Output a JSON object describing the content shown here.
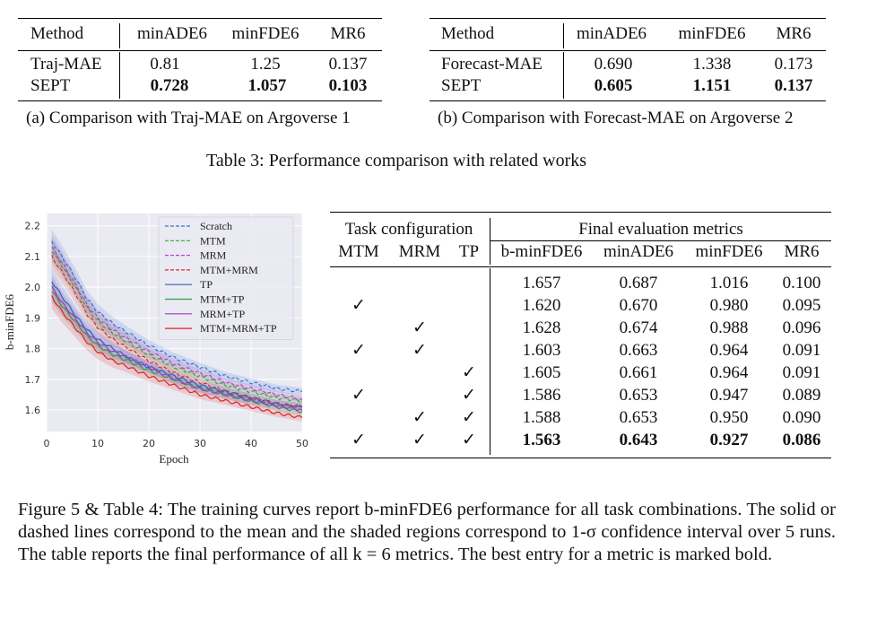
{
  "table3a": {
    "headers": [
      "Method",
      "minADE6",
      "minFDE6",
      "MR6"
    ],
    "rows": [
      {
        "method": "Traj-MAE",
        "minADE": "0.81",
        "minFDE": "1.25",
        "MR": "0.137",
        "bold": false
      },
      {
        "method": "SEPT",
        "minADE": "0.728",
        "minFDE": "1.057",
        "MR": "0.103",
        "bold": true
      }
    ],
    "caption": "(a) Comparison with Traj-MAE on Argoverse 1"
  },
  "table3b": {
    "headers": [
      "Method",
      "minADE6",
      "minFDE6",
      "MR6"
    ],
    "rows": [
      {
        "method": "Forecast-MAE",
        "minADE": "0.690",
        "minFDE": "1.338",
        "MR": "0.173",
        "bold": false
      },
      {
        "method": "SEPT",
        "minADE": "0.605",
        "minFDE": "1.151",
        "MR": "0.137",
        "bold": true
      }
    ],
    "caption": "(b) Comparison with Forecast-MAE on Argoverse 2"
  },
  "table3_caption": "Table 3: Performance comparison with related works",
  "table4": {
    "group1": "Task configuration",
    "group2": "Final evaluation metrics",
    "col_mtm": "MTM",
    "col_mrm": "MRM",
    "col_tp": "TP",
    "col_bminfde": "b-minFDE6",
    "col_minade": "minADE6",
    "col_minfde": "minFDE6",
    "col_mr": "MR6",
    "check": "✓",
    "rows": [
      {
        "mtm": false,
        "mrm": false,
        "tp": false,
        "bminfde": "1.657",
        "minade": "0.687",
        "minfde": "1.016",
        "mr": "0.100"
      },
      {
        "mtm": true,
        "mrm": false,
        "tp": false,
        "bminfde": "1.620",
        "minade": "0.670",
        "minfde": "0.980",
        "mr": "0.095"
      },
      {
        "mtm": false,
        "mrm": true,
        "tp": false,
        "bminfde": "1.628",
        "minade": "0.674",
        "minfde": "0.988",
        "mr": "0.096"
      },
      {
        "mtm": true,
        "mrm": true,
        "tp": false,
        "bminfde": "1.603",
        "minade": "0.663",
        "minfde": "0.964",
        "mr": "0.091"
      },
      {
        "mtm": false,
        "mrm": false,
        "tp": true,
        "bminfde": "1.605",
        "minade": "0.661",
        "minfde": "0.964",
        "mr": "0.091"
      },
      {
        "mtm": true,
        "mrm": false,
        "tp": true,
        "bminfde": "1.586",
        "minade": "0.653",
        "minfde": "0.947",
        "mr": "0.089"
      },
      {
        "mtm": false,
        "mrm": true,
        "tp": true,
        "bminfde": "1.588",
        "minade": "0.653",
        "minfde": "0.950",
        "mr": "0.090"
      },
      {
        "mtm": true,
        "mrm": true,
        "tp": true,
        "bminfde": "1.563",
        "minade": "0.643",
        "minfde": "0.927",
        "mr": "0.086"
      }
    ]
  },
  "figure_caption": "Figure 5 & Table 4: The training curves report b-minFDE6 performance for all task combinations. The solid or dashed lines correspond to the mean and the shaded regions correspond to 1-σ confidence interval over 5 runs. The table reports the final performance of all k = 6 metrics. The best entry for a metric is marked bold.",
  "chart_data": {
    "type": "line",
    "title": "",
    "xlabel": "Epoch",
    "ylabel": "b-minFDE6",
    "xlim": [
      0,
      50
    ],
    "ylim": [
      1.53,
      2.24
    ],
    "xticks": [
      "0",
      "10",
      "20",
      "30",
      "40",
      "50"
    ],
    "yticks": [
      "1.6",
      "1.7",
      "1.8",
      "1.9",
      "2.0",
      "2.1",
      "2.2"
    ],
    "legend_position": "top-right",
    "x": [
      1,
      3,
      6,
      8,
      10,
      13,
      16,
      20,
      25,
      30,
      35,
      40,
      45,
      50
    ],
    "series": [
      {
        "name": "Scratch",
        "color": "#3b6fd4",
        "dash": true,
        "values": [
          2.15,
          2.1,
          2.02,
          1.96,
          1.92,
          1.88,
          1.85,
          1.81,
          1.77,
          1.74,
          1.71,
          1.69,
          1.67,
          1.66
        ]
      },
      {
        "name": "MTM",
        "color": "#3aa03a",
        "dash": true,
        "values": [
          2.12,
          2.07,
          1.99,
          1.93,
          1.89,
          1.85,
          1.82,
          1.78,
          1.74,
          1.71,
          1.68,
          1.66,
          1.64,
          1.63
        ]
      },
      {
        "name": "MRM",
        "color": "#b044c8",
        "dash": true,
        "values": [
          2.13,
          2.08,
          2.0,
          1.94,
          1.9,
          1.86,
          1.83,
          1.79,
          1.75,
          1.72,
          1.69,
          1.67,
          1.65,
          1.635
        ]
      },
      {
        "name": "MTM+MRM",
        "color": "#d92b2b",
        "dash": true,
        "values": [
          2.1,
          2.05,
          1.97,
          1.91,
          1.87,
          1.83,
          1.8,
          1.76,
          1.72,
          1.69,
          1.66,
          1.64,
          1.62,
          1.61
        ]
      },
      {
        "name": "TP",
        "color": "#2f5fc0",
        "dash": false,
        "values": [
          2.02,
          1.97,
          1.9,
          1.86,
          1.83,
          1.8,
          1.77,
          1.74,
          1.71,
          1.68,
          1.66,
          1.64,
          1.62,
          1.61
        ]
      },
      {
        "name": "MTM+TP",
        "color": "#2e9e4a",
        "dash": false,
        "values": [
          1.99,
          1.94,
          1.88,
          1.84,
          1.81,
          1.78,
          1.76,
          1.73,
          1.7,
          1.67,
          1.65,
          1.63,
          1.61,
          1.595
        ]
      },
      {
        "name": "MRM+TP",
        "color": "#9a3ec0",
        "dash": false,
        "values": [
          2.0,
          1.95,
          1.89,
          1.85,
          1.82,
          1.79,
          1.77,
          1.74,
          1.7,
          1.67,
          1.65,
          1.63,
          1.615,
          1.6
        ]
      },
      {
        "name": "MTM+MRM+TP",
        "color": "#e02020",
        "dash": false,
        "values": [
          1.97,
          1.92,
          1.86,
          1.82,
          1.79,
          1.76,
          1.74,
          1.71,
          1.68,
          1.65,
          1.63,
          1.61,
          1.59,
          1.575
        ]
      }
    ]
  }
}
